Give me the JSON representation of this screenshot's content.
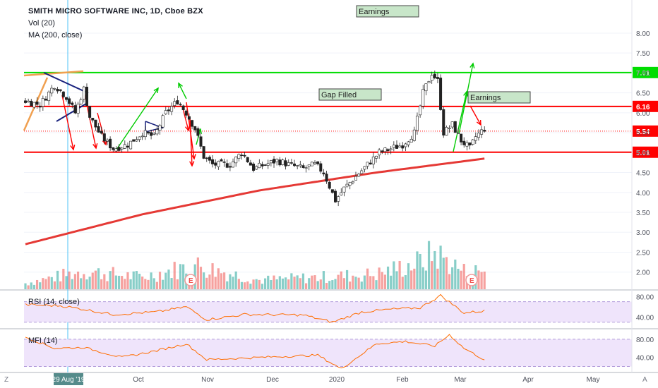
{
  "header": {
    "title": "SMITH MICRO SOFTWARE INC, 1D, Cboe BZX",
    "vol": "Vol (20)",
    "ma": "MA (200, close)"
  },
  "corner": {
    "left": "Z",
    "right": "A"
  },
  "colors": {
    "up": "#26a69a",
    "down": "#ef5350",
    "candle_body": "#ffffff",
    "candle_border": "#222222",
    "ma": "#e53935",
    "resistance": "#ff0000",
    "target_line": "#00dd00",
    "rsi_fill": "#efe4fb",
    "indicator_line": "#ff6d00",
    "current_price": "#ff0000"
  },
  "chart_data": [
    {
      "type": "line",
      "name": "price",
      "y_ticks": [
        "8.00",
        "7.50",
        "7.00",
        "6.50",
        "6.00",
        "5.50",
        "5.00",
        "4.50",
        "4.00",
        "3.50",
        "3.00",
        "2.50",
        "2.00"
      ],
      "ylim": [
        1.8,
        8.3
      ],
      "x_labels": [
        {
          "label": "29 Aug '19",
          "highlight": true
        },
        {
          "label": "Oct"
        },
        {
          "label": "Nov"
        },
        {
          "label": "Dec"
        },
        {
          "label": "2020"
        },
        {
          "label": "Feb"
        },
        {
          "label": "Mar"
        },
        {
          "label": "Apr"
        },
        {
          "label": "May"
        }
      ],
      "levels": [
        {
          "value": 7.01,
          "label": "7.01",
          "kind": "target"
        },
        {
          "value": 6.16,
          "label": "6.16",
          "kind": "resistance"
        },
        {
          "value": 5.54,
          "label": "5.54",
          "kind": "last"
        },
        {
          "value": 5.01,
          "label": "5.01",
          "kind": "resistance"
        }
      ],
      "annotations": [
        {
          "text": "Earnings"
        },
        {
          "text": "Gap Filled"
        },
        {
          "text": "Earnings"
        }
      ],
      "close_anchors": [
        [
          0,
          6.3
        ],
        [
          5,
          6.2
        ],
        [
          10,
          6.7
        ],
        [
          14,
          6.4
        ],
        [
          17,
          6.0
        ],
        [
          20,
          6.6
        ],
        [
          22,
          5.9
        ],
        [
          26,
          5.4
        ],
        [
          30,
          5.1
        ],
        [
          35,
          5.2
        ],
        [
          40,
          5.5
        ],
        [
          44,
          5.4
        ],
        [
          48,
          6.0
        ],
        [
          52,
          6.3
        ],
        [
          55,
          6.0
        ],
        [
          58,
          5.6
        ],
        [
          61,
          4.9
        ],
        [
          64,
          4.7
        ],
        [
          70,
          4.7
        ],
        [
          74,
          5.0
        ],
        [
          78,
          4.6
        ],
        [
          82,
          4.7
        ],
        [
          86,
          4.8
        ],
        [
          90,
          4.7
        ],
        [
          95,
          4.6
        ],
        [
          99,
          4.7
        ],
        [
          102,
          4.5
        ],
        [
          106,
          3.8
        ],
        [
          109,
          4.1
        ],
        [
          113,
          4.4
        ],
        [
          117,
          4.7
        ],
        [
          121,
          5.0
        ],
        [
          125,
          5.1
        ],
        [
          129,
          5.2
        ],
        [
          133,
          5.5
        ],
        [
          136,
          6.5
        ],
        [
          139,
          7.0
        ],
        [
          141,
          6.8
        ],
        [
          143,
          5.5
        ],
        [
          146,
          5.7
        ],
        [
          149,
          5.3
        ],
        [
          152,
          5.1
        ],
        [
          154,
          5.4
        ],
        [
          157,
          5.6
        ]
      ],
      "ma200_anchors": [
        [
          0,
          2.7
        ],
        [
          40,
          3.45
        ],
        [
          80,
          4.05
        ],
        [
          120,
          4.5
        ],
        [
          157,
          4.85
        ]
      ],
      "volume_anchors": [
        [
          0,
          1
        ],
        [
          20,
          3
        ],
        [
          40,
          2
        ],
        [
          58,
          4
        ],
        [
          80,
          1.5
        ],
        [
          100,
          2
        ],
        [
          120,
          2.5
        ],
        [
          135,
          4.5
        ],
        [
          140,
          6
        ],
        [
          150,
          3
        ],
        [
          157,
          3
        ]
      ]
    },
    {
      "type": "line",
      "name": "RSI (14, close)",
      "y_ticks": [
        "80.00",
        "40.00"
      ],
      "ylim": [
        20,
        90
      ],
      "anchors": [
        [
          0,
          64
        ],
        [
          12,
          62
        ],
        [
          20,
          55
        ],
        [
          30,
          45
        ],
        [
          45,
          50
        ],
        [
          55,
          60
        ],
        [
          62,
          35
        ],
        [
          75,
          45
        ],
        [
          95,
          44
        ],
        [
          105,
          30
        ],
        [
          115,
          50
        ],
        [
          125,
          55
        ],
        [
          135,
          58
        ],
        [
          142,
          82
        ],
        [
          150,
          48
        ],
        [
          157,
          52
        ]
      ]
    },
    {
      "type": "line",
      "name": "MFI (14)",
      "y_ticks": [
        "80.00",
        "40.00"
      ],
      "ylim": [
        10,
        100
      ],
      "anchors": [
        [
          0,
          85
        ],
        [
          10,
          60
        ],
        [
          20,
          62
        ],
        [
          33,
          40
        ],
        [
          45,
          55
        ],
        [
          55,
          70
        ],
        [
          62,
          35
        ],
        [
          80,
          40
        ],
        [
          100,
          45
        ],
        [
          108,
          15
        ],
        [
          120,
          70
        ],
        [
          130,
          75
        ],
        [
          140,
          65
        ],
        [
          145,
          90
        ],
        [
          150,
          60
        ],
        [
          157,
          35
        ]
      ]
    }
  ]
}
